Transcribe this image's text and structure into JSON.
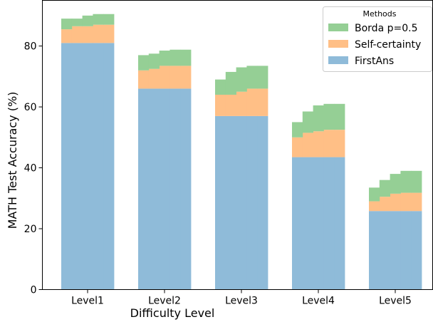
{
  "chart_data": {
    "type": "bar",
    "stacked": true,
    "xlabel": "Difficulty Level",
    "ylabel": "MATH Test Accuracy (%)",
    "categories": [
      "Level1",
      "Level2",
      "Level3",
      "Level4",
      "Level5"
    ],
    "sub_steps": 5,
    "ylim": [
      0,
      95
    ],
    "yticks": [
      0,
      20,
      40,
      60,
      80
    ],
    "grid": false,
    "legend": {
      "title": "Methods",
      "placement": "top-right",
      "order": [
        "Borda p=0.5",
        "Self-certainty",
        "FirstAns"
      ]
    },
    "series": [
      {
        "name": "FirstAns",
        "color": "#8fbbd9",
        "stack_top": [
          [
            81,
            81,
            81,
            81,
            81
          ],
          [
            66,
            66,
            66,
            66,
            66
          ],
          [
            57,
            57,
            57,
            57,
            57
          ],
          [
            43.5,
            43.5,
            43.5,
            43.5,
            43.5
          ],
          [
            25.8,
            25.8,
            25.8,
            25.8,
            25.8
          ]
        ]
      },
      {
        "name": "Self-certainty",
        "color": "#ffbf86",
        "stack_top": [
          [
            85.5,
            86.5,
            86.5,
            87,
            87
          ],
          [
            72,
            72.5,
            73.5,
            73.5,
            73.5
          ],
          [
            64,
            64,
            65,
            66,
            66
          ],
          [
            50,
            51.5,
            52,
            52.5,
            52.5
          ],
          [
            29,
            30.5,
            31.5,
            31.8,
            31.8
          ]
        ]
      },
      {
        "name": "Borda p=0.5",
        "color": "#95cf95",
        "stack_top": [
          [
            89,
            89,
            90,
            90.5,
            90.5
          ],
          [
            77,
            77.5,
            78.5,
            78.8,
            78.8
          ],
          [
            69,
            71.5,
            73,
            73.5,
            73.5
          ],
          [
            55,
            58.5,
            60.5,
            61,
            61
          ],
          [
            33.5,
            36,
            38,
            39,
            39
          ]
        ]
      }
    ]
  }
}
